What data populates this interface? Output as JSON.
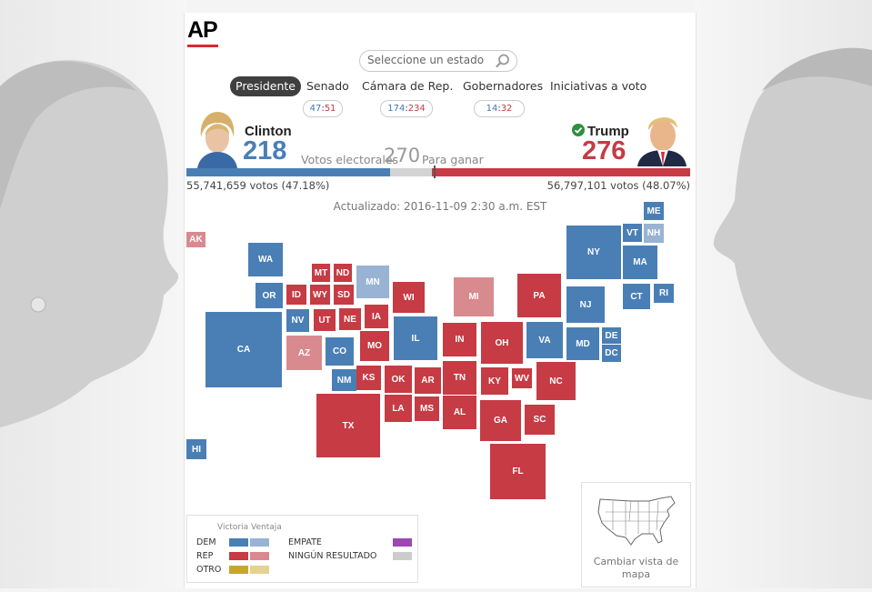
{
  "brand": {
    "logo_text": "AP"
  },
  "search": {
    "placeholder": "Seleccione un estado"
  },
  "tabs": [
    {
      "label": "Presidente",
      "active": true
    },
    {
      "label": "Senado"
    },
    {
      "label": "Cámara de Rep."
    },
    {
      "label": "Gobernadores"
    },
    {
      "label": "Iniciativas a voto"
    }
  ],
  "counts": {
    "senado": {
      "dem": "47",
      "sep": ":",
      "rep": "51"
    },
    "camara": {
      "dem": "174",
      "sep": ":",
      "rep": "234"
    },
    "gobernadores": {
      "dem": "14",
      "sep": ":",
      "rep": "32"
    }
  },
  "candidates": {
    "dem": {
      "name": "Clinton",
      "electoral": "218",
      "popular": "55,741,659 votos (47.18%)",
      "electoral_votes": 218
    },
    "rep": {
      "name": "Trump",
      "electoral": "276",
      "popular": "56,797,101 votos (48.07%)",
      "electoral_votes": 276,
      "winner": true
    }
  },
  "labels": {
    "electoral_votes": "Votos electorales",
    "to_win_number": "270",
    "to_win_text": "Para ganar"
  },
  "updated": "Actualizado: 2016-11-09 2:30 a.m. EST",
  "colors": {
    "dem_win": "#4a7fb6",
    "dem_lead": "#98b3d4",
    "rep_win": "#c63b44",
    "rep_lead": "#d98a8f",
    "other_win": "#c8a52e",
    "other_lead": "#e6d28f",
    "tie": "#9b48b0",
    "no_result": "#cccccc"
  },
  "states": [
    {
      "abbr": "AK",
      "party": "rep_lead"
    },
    {
      "abbr": "ME",
      "party": "dem_win"
    },
    {
      "abbr": "VT",
      "party": "dem_win"
    },
    {
      "abbr": "NH",
      "party": "dem_lead"
    },
    {
      "abbr": "NY",
      "party": "dem_win"
    },
    {
      "abbr": "MA",
      "party": "dem_win"
    },
    {
      "abbr": "WA",
      "party": "dem_win"
    },
    {
      "abbr": "MT",
      "party": "rep_win"
    },
    {
      "abbr": "ND",
      "party": "rep_win"
    },
    {
      "abbr": "MN",
      "party": "dem_lead"
    },
    {
      "abbr": "OR",
      "party": "dem_win"
    },
    {
      "abbr": "ID",
      "party": "rep_win"
    },
    {
      "abbr": "WY",
      "party": "rep_win"
    },
    {
      "abbr": "SD",
      "party": "rep_win"
    },
    {
      "abbr": "WI",
      "party": "rep_win"
    },
    {
      "abbr": "MI",
      "party": "rep_lead"
    },
    {
      "abbr": "PA",
      "party": "rep_win"
    },
    {
      "abbr": "CT",
      "party": "dem_win"
    },
    {
      "abbr": "RI",
      "party": "dem_win"
    },
    {
      "abbr": "NJ",
      "party": "dem_win"
    },
    {
      "abbr": "NV",
      "party": "dem_win"
    },
    {
      "abbr": "UT",
      "party": "rep_win"
    },
    {
      "abbr": "NE",
      "party": "rep_win"
    },
    {
      "abbr": "IA",
      "party": "rep_win"
    },
    {
      "abbr": "CA",
      "party": "dem_win"
    },
    {
      "abbr": "IL",
      "party": "dem_win"
    },
    {
      "abbr": "IN",
      "party": "rep_win"
    },
    {
      "abbr": "OH",
      "party": "rep_win"
    },
    {
      "abbr": "VA",
      "party": "dem_win"
    },
    {
      "abbr": "MD",
      "party": "dem_win"
    },
    {
      "abbr": "DE",
      "party": "dem_win"
    },
    {
      "abbr": "DC",
      "party": "dem_win"
    },
    {
      "abbr": "AZ",
      "party": "rep_lead"
    },
    {
      "abbr": "CO",
      "party": "dem_win"
    },
    {
      "abbr": "MO",
      "party": "rep_win"
    },
    {
      "abbr": "NM",
      "party": "dem_win"
    },
    {
      "abbr": "KS",
      "party": "rep_win"
    },
    {
      "abbr": "OK",
      "party": "rep_win"
    },
    {
      "abbr": "AR",
      "party": "rep_win"
    },
    {
      "abbr": "TN",
      "party": "rep_win"
    },
    {
      "abbr": "KY",
      "party": "rep_win"
    },
    {
      "abbr": "WV",
      "party": "rep_win"
    },
    {
      "abbr": "NC",
      "party": "rep_win"
    },
    {
      "abbr": "LA",
      "party": "rep_win"
    },
    {
      "abbr": "MS",
      "party": "rep_win"
    },
    {
      "abbr": "AL",
      "party": "rep_win"
    },
    {
      "abbr": "GA",
      "party": "rep_win"
    },
    {
      "abbr": "SC",
      "party": "rep_win"
    },
    {
      "abbr": "TX",
      "party": "rep_win"
    },
    {
      "abbr": "FL",
      "party": "rep_win"
    },
    {
      "abbr": "HI",
      "party": "dem_win"
    }
  ],
  "legend": {
    "header_win": "Victoria",
    "header_lead": "Ventaja",
    "dem": "DEM",
    "rep": "REP",
    "other": "OTRO",
    "tie": "EMPATE",
    "no_result": "NINGÚN RESULTADO"
  },
  "map_view": {
    "label_line1": "Cambiar vista de",
    "label_line2": "mapa"
  }
}
